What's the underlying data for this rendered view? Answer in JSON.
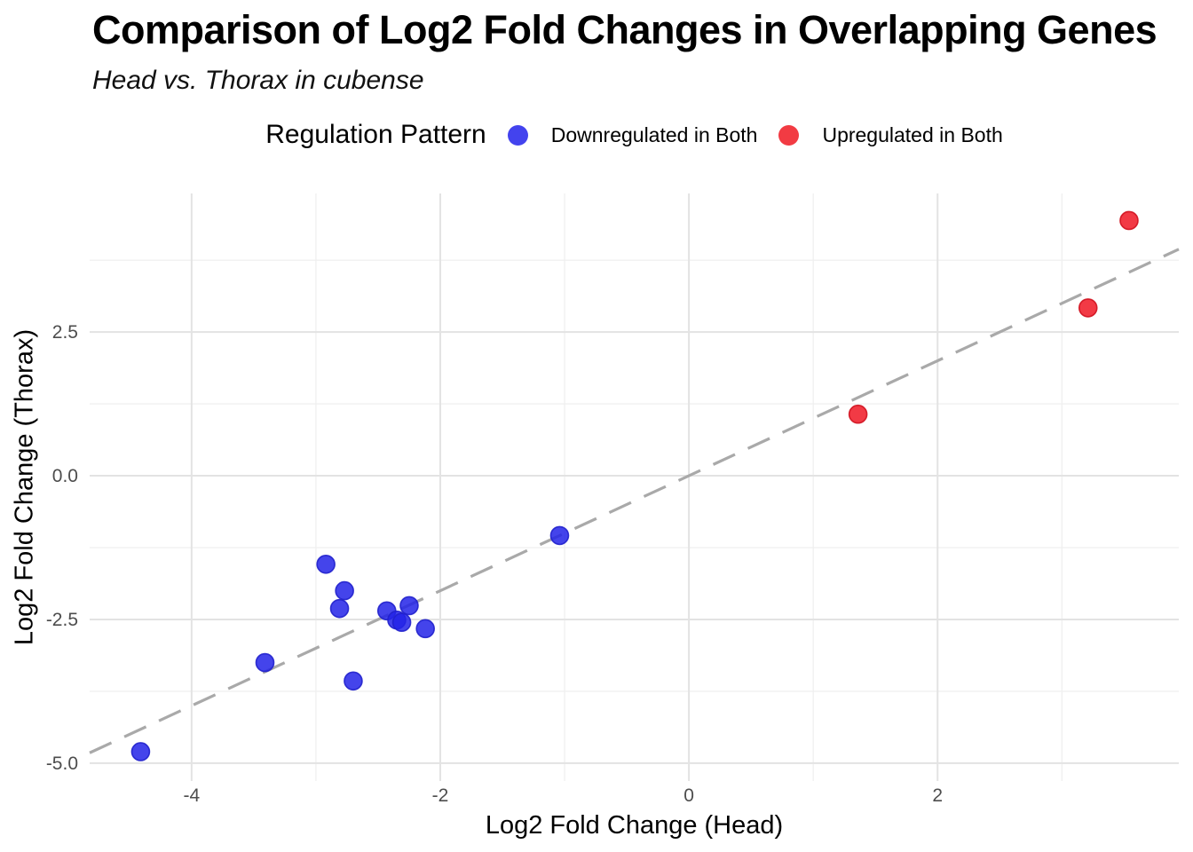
{
  "chart_data": {
    "type": "scatter",
    "title": "Comparison of Log2 Fold Changes in Overlapping Genes",
    "subtitle": "Head vs. Thorax in cubense",
    "xlabel": "Log2 Fold Change (Head)",
    "ylabel": "Log2 Fold Change (Thorax)",
    "legend_title": "Regulation Pattern",
    "legend_position": "top",
    "grid": "on",
    "xlim": [
      -4.82,
      3.94
    ],
    "ylim": [
      -5.31,
      4.91
    ],
    "x_ticks": {
      "values": [
        -4,
        -2,
        0,
        2
      ],
      "labels": [
        "-4",
        "-2",
        "0",
        "2"
      ],
      "minor": [
        -3,
        -1,
        1,
        3
      ]
    },
    "y_ticks": {
      "values": [
        2.5,
        0,
        -2.5,
        -5
      ],
      "labels": [
        "2.5",
        "0.0",
        "-2.5",
        "-5.0"
      ],
      "minor": [
        3.75,
        1.25,
        -1.25,
        -3.75
      ]
    },
    "reference_line": {
      "equation": "y = x",
      "style": "dashed",
      "color": "#a9a9a9"
    },
    "series": [
      {
        "name": "Downregulated in Both",
        "marker_color": "#2323e8",
        "marker_stroke": "#2020cc",
        "legend_color": "#4343ee",
        "points": [
          [
            -4.41,
            -4.8
          ],
          [
            -3.41,
            -3.25
          ],
          [
            -2.92,
            -1.54
          ],
          [
            -2.81,
            -2.31
          ],
          [
            -2.77,
            -2.0
          ],
          [
            -2.7,
            -3.57
          ],
          [
            -2.43,
            -2.35
          ],
          [
            -2.35,
            -2.51
          ],
          [
            -2.31,
            -2.55
          ],
          [
            -2.25,
            -2.26
          ],
          [
            -2.12,
            -2.66
          ],
          [
            -1.04,
            -1.04
          ]
        ]
      },
      {
        "name": "Upregulated in Both",
        "marker_color": "#f01824",
        "marker_stroke": "#d0111e",
        "legend_color": "#f23b43",
        "points": [
          [
            1.36,
            1.07
          ],
          [
            3.21,
            2.92
          ],
          [
            3.54,
            4.44
          ]
        ]
      }
    ],
    "colors": {
      "grid_major": "#e3e3e3",
      "grid_minor": "#f0f0f0",
      "axis_text": "#4d4d4d",
      "text": "#000000"
    }
  }
}
